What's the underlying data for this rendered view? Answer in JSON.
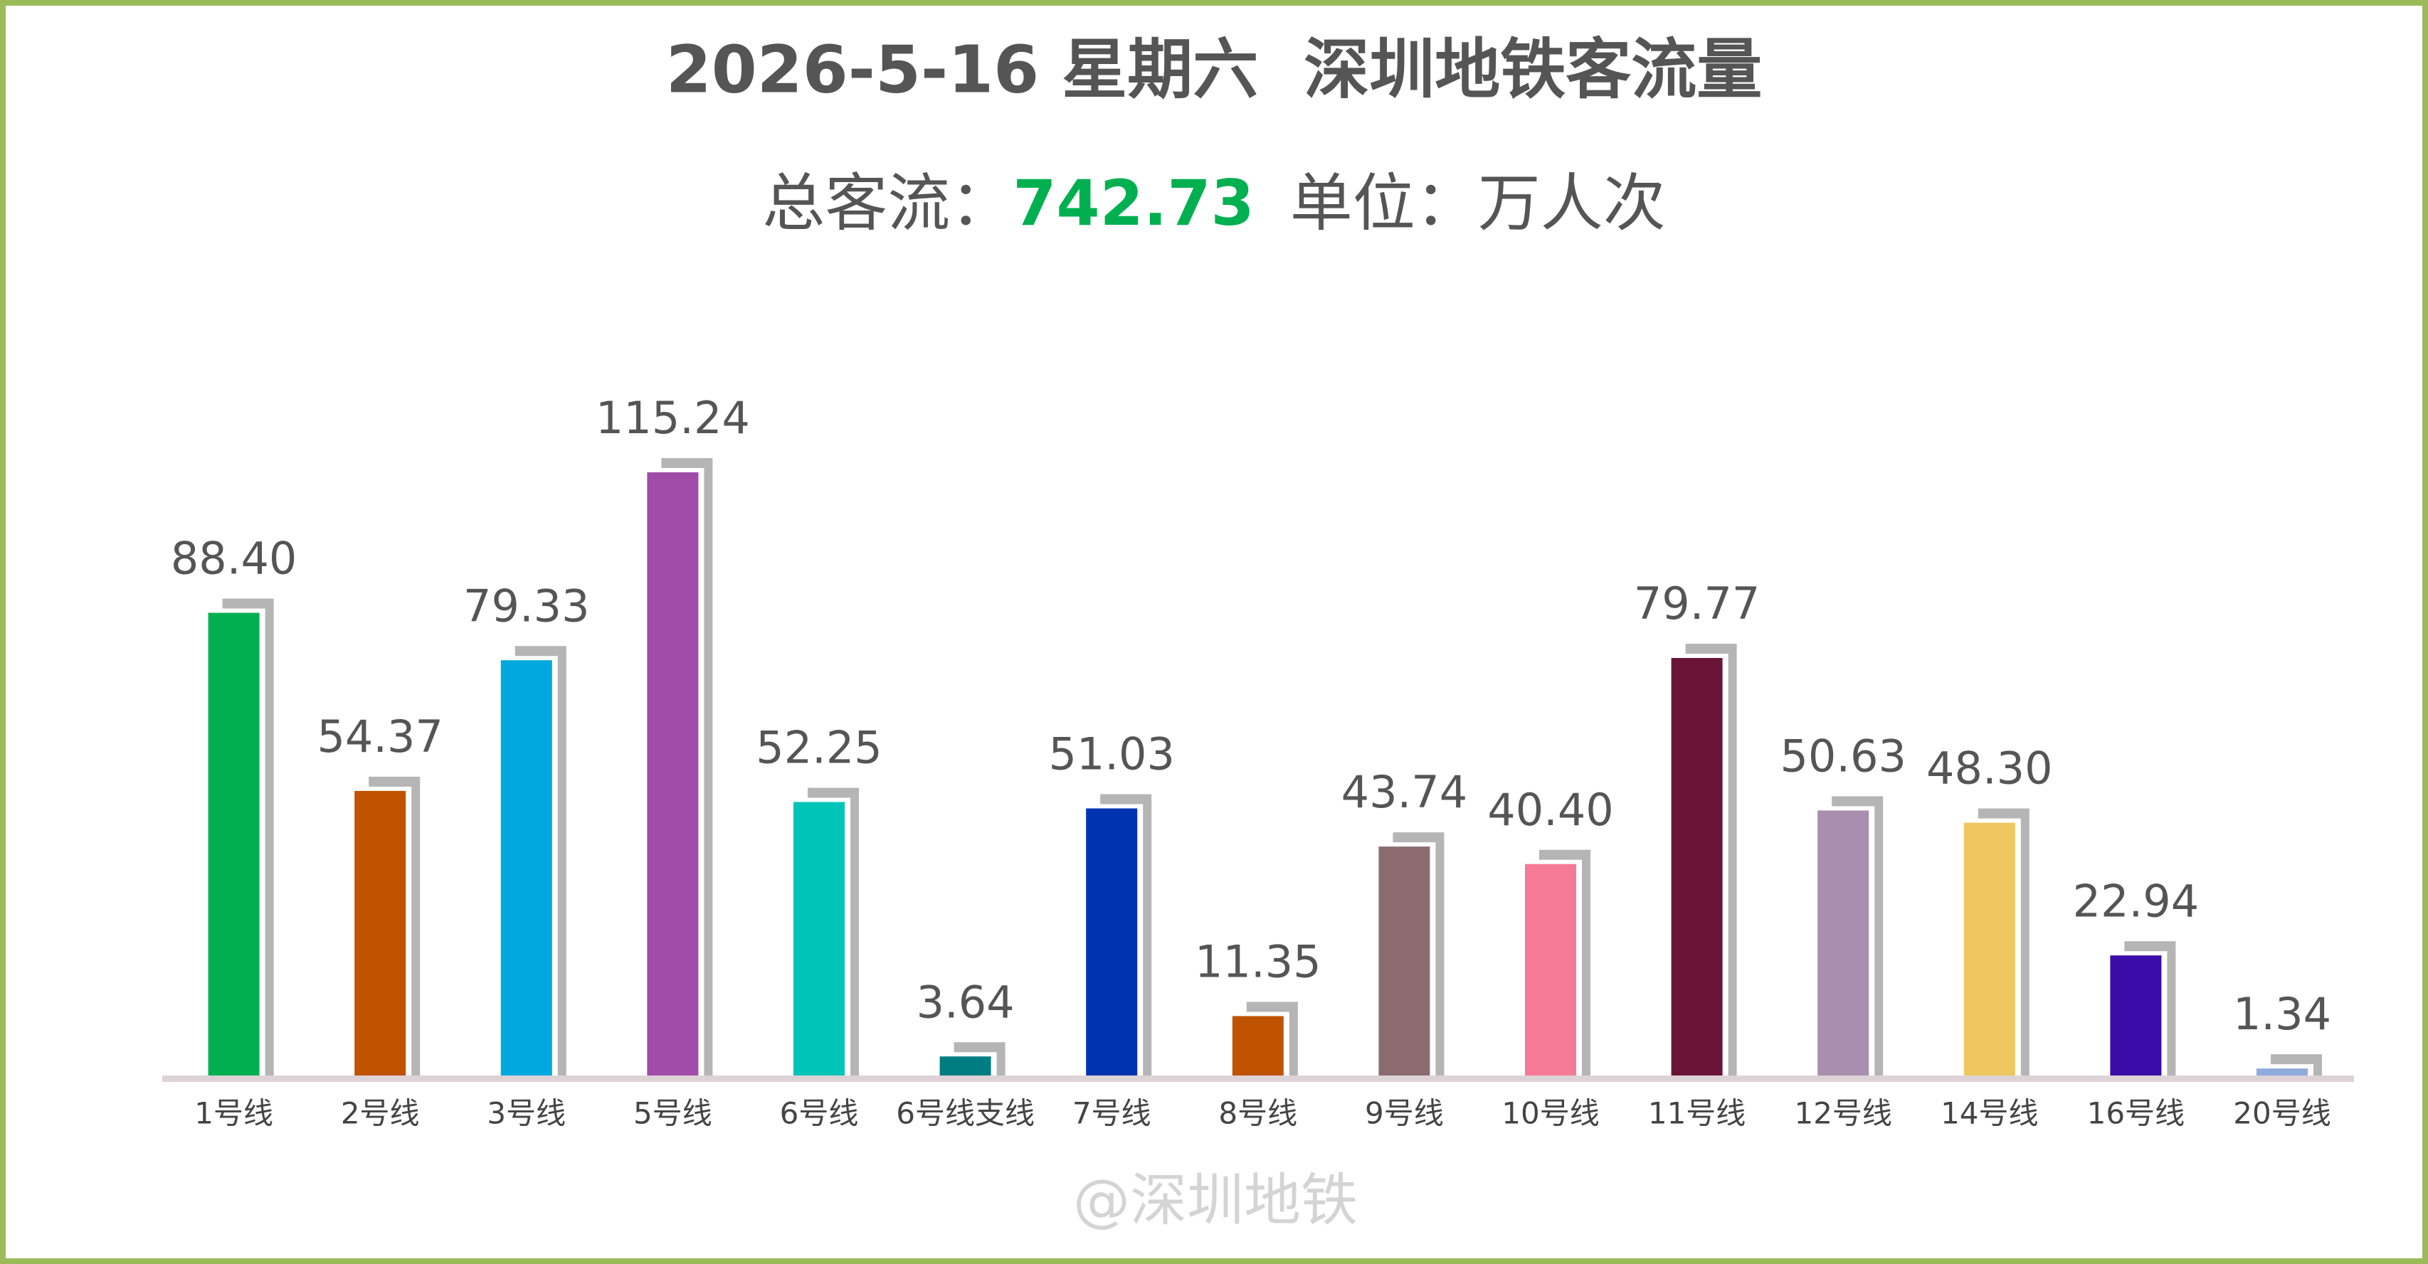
{
  "chart_data": {
    "type": "bar",
    "title": "2026-5-16 星期六  深圳地铁客流量",
    "total_label": "总客流：",
    "total": 742.73,
    "unit_label": "单位：万人次",
    "watermark": "@深圳地铁",
    "categories": [
      "1号线",
      "2号线",
      "3号线",
      "5号线",
      "6号线",
      "6号线支线",
      "7号线",
      "8号线",
      "9号线",
      "10号线",
      "11号线",
      "12号线",
      "14号线",
      "16号线",
      "20号线"
    ],
    "values": [
      88.4,
      54.37,
      79.33,
      115.24,
      52.25,
      3.64,
      51.03,
      11.35,
      43.74,
      40.4,
      79.77,
      50.63,
      48.3,
      22.94,
      1.34
    ],
    "value_labels": [
      "88.40",
      "54.37",
      "79.33",
      "115.24",
      "52.25",
      "3.64",
      "51.03",
      "11.35",
      "43.74",
      "40.40",
      "79.77",
      "50.63",
      "48.30",
      "22.94",
      "1.34"
    ],
    "colors": [
      "#00b050",
      "#bf5300",
      "#00a8e0",
      "#a04ca8",
      "#00c4b8",
      "#007d80",
      "#0033b0",
      "#bf5300",
      "#8b6b70",
      "#f57a95",
      "#6a1538",
      "#a88fb0",
      "#eec75f",
      "#3a0ca8",
      "#8faadc"
    ],
    "total_color": "#00b050"
  }
}
